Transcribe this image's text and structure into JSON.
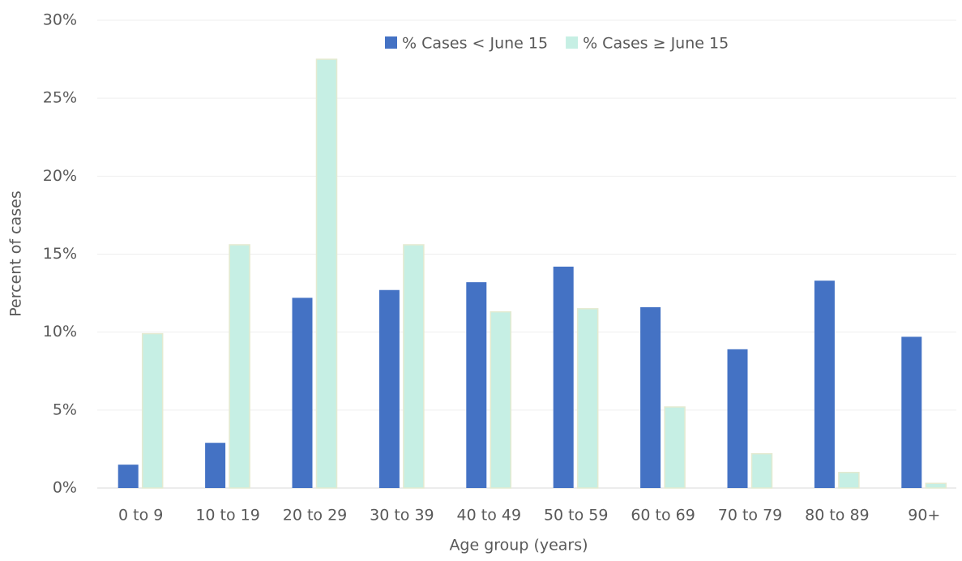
{
  "chart_data": {
    "type": "bar",
    "x_label": "Age group (years)",
    "y_label": "Percent of cases",
    "categories": [
      "0 to 9",
      "10 to 19",
      "20 to 29",
      "30 to 39",
      "40 to 49",
      "50 to 59",
      "60 to 69",
      "70 to 79",
      "80 to 89",
      "90+"
    ],
    "series": [
      {
        "name": "% Cases < June 15",
        "color": "#4472c4",
        "values": [
          1.5,
          2.9,
          12.2,
          12.7,
          13.2,
          14.2,
          11.6,
          8.9,
          13.3,
          9.7
        ]
      },
      {
        "name": "% Cases ≥ June 15",
        "color": "#c6efe4",
        "values": [
          9.9,
          15.6,
          27.5,
          15.6,
          11.3,
          11.5,
          5.2,
          2.2,
          1.0,
          0.3
        ]
      }
    ],
    "ylim": [
      0,
      30
    ],
    "yticks": [
      {
        "value": 0,
        "label": "0%"
      },
      {
        "value": 5,
        "label": "5%"
      },
      {
        "value": 10,
        "label": "10%"
      },
      {
        "value": 15,
        "label": "15%"
      },
      {
        "value": 20,
        "label": "20%"
      },
      {
        "value": 25,
        "label": "25%"
      },
      {
        "value": 30,
        "label": "30%"
      }
    ],
    "grid": true,
    "legend": "top"
  }
}
